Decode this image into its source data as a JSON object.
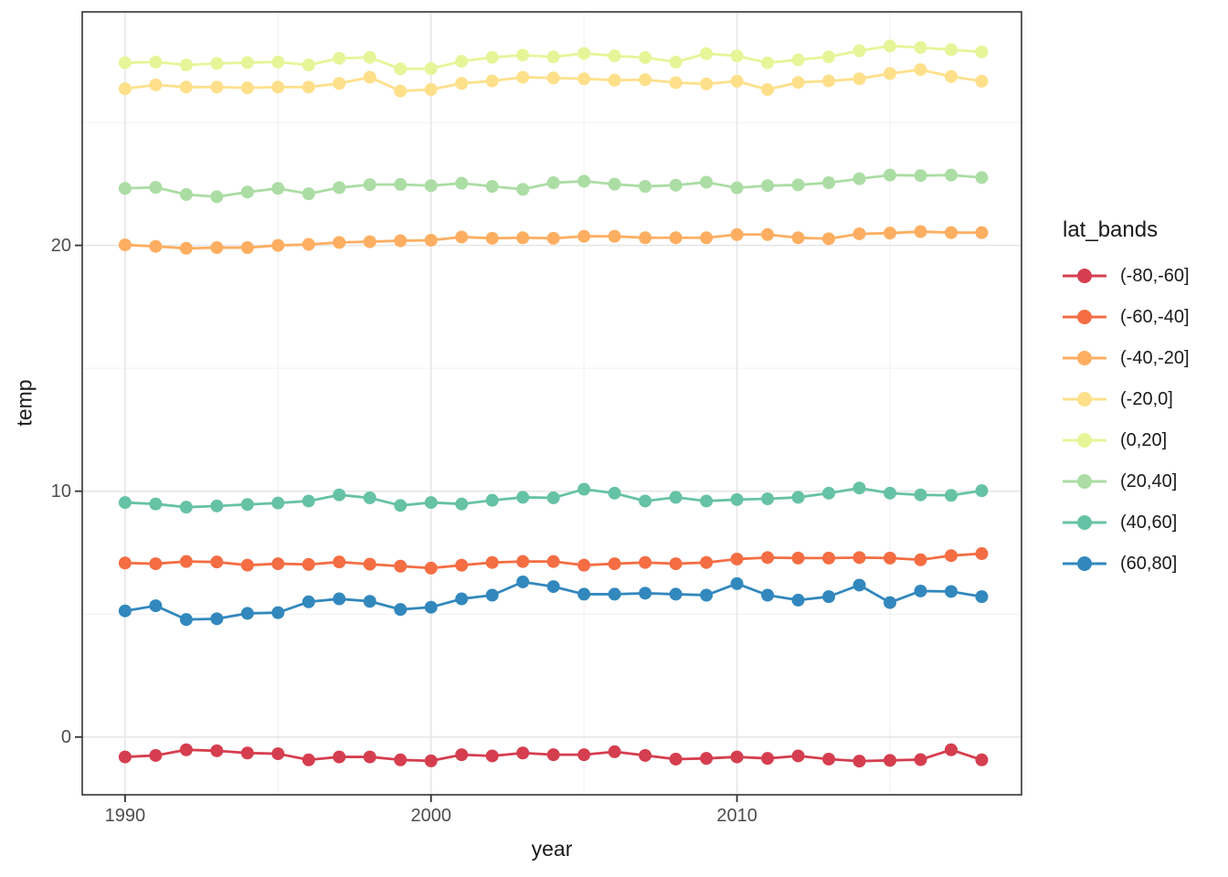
{
  "chart_data": {
    "type": "line",
    "title": "",
    "xlabel": "year",
    "ylabel": "temp",
    "legend_title": "lat_bands",
    "legend_position": "right",
    "grid": true,
    "xlim": [
      1988.6,
      2019.3
    ],
    "ylim": [
      -2.35,
      29.5
    ],
    "xticks": [
      1990,
      2000,
      2010
    ],
    "xticks_minor": [
      1995,
      2005,
      2015
    ],
    "yticks": [
      0,
      10,
      20
    ],
    "yticks_minor": [
      5,
      15,
      25
    ],
    "x": [
      1990,
      1991,
      1992,
      1993,
      1994,
      1995,
      1996,
      1997,
      1998,
      1999,
      2000,
      2001,
      2002,
      2003,
      2004,
      2005,
      2006,
      2007,
      2008,
      2009,
      2010,
      2011,
      2012,
      2013,
      2014,
      2015,
      2016,
      2017,
      2018
    ],
    "series": [
      {
        "name": "(-80,-60]",
        "color": "#d53e4f",
        "values": [
          -0.81,
          -0.75,
          -0.52,
          -0.56,
          -0.65,
          -0.68,
          -0.93,
          -0.81,
          -0.81,
          -0.93,
          -0.97,
          -0.72,
          -0.77,
          -0.65,
          -0.72,
          -0.72,
          -0.6,
          -0.75,
          -0.9,
          -0.87,
          -0.81,
          -0.87,
          -0.77,
          -0.9,
          -0.98,
          -0.95,
          -0.92,
          -0.52,
          -0.93
        ]
      },
      {
        "name": "(-60,-40]",
        "color": "#f46d43",
        "values": [
          7.08,
          7.05,
          7.14,
          7.12,
          6.99,
          7.05,
          7.02,
          7.12,
          7.03,
          6.95,
          6.87,
          6.99,
          7.1,
          7.14,
          7.14,
          6.99,
          7.05,
          7.1,
          7.05,
          7.1,
          7.24,
          7.3,
          7.28,
          7.28,
          7.3,
          7.28,
          7.21,
          7.38,
          7.46
        ]
      },
      {
        "name": "(-40,-20]",
        "color": "#fdae61",
        "values": [
          20.02,
          19.96,
          19.88,
          19.91,
          19.91,
          20.0,
          20.04,
          20.12,
          20.15,
          20.19,
          20.21,
          20.34,
          20.29,
          20.31,
          20.29,
          20.37,
          20.37,
          20.31,
          20.31,
          20.31,
          20.44,
          20.44,
          20.31,
          20.27,
          20.47,
          20.5,
          20.56,
          20.52,
          20.52
        ]
      },
      {
        "name": "(-20,0]",
        "color": "#fee08b",
        "values": [
          26.37,
          26.53,
          26.44,
          26.44,
          26.41,
          26.44,
          26.44,
          26.59,
          26.84,
          26.28,
          26.34,
          26.59,
          26.69,
          26.84,
          26.81,
          26.78,
          26.72,
          26.74,
          26.62,
          26.57,
          26.68,
          26.34,
          26.63,
          26.69,
          26.78,
          26.99,
          27.15,
          26.87,
          26.68
        ]
      },
      {
        "name": "(0,20]",
        "color": "#e6f598",
        "values": [
          27.43,
          27.46,
          27.34,
          27.4,
          27.44,
          27.46,
          27.34,
          27.61,
          27.65,
          27.18,
          27.19,
          27.49,
          27.65,
          27.74,
          27.67,
          27.81,
          27.71,
          27.64,
          27.46,
          27.8,
          27.71,
          27.43,
          27.55,
          27.67,
          27.92,
          28.11,
          28.05,
          27.96,
          27.87
        ]
      },
      {
        "name": "(20,40]",
        "color": "#abdda4",
        "values": [
          22.32,
          22.36,
          22.07,
          21.98,
          22.17,
          22.32,
          22.1,
          22.35,
          22.47,
          22.48,
          22.43,
          22.53,
          22.4,
          22.28,
          22.55,
          22.61,
          22.49,
          22.4,
          22.45,
          22.57,
          22.34,
          22.43,
          22.46,
          22.55,
          22.71,
          22.86,
          22.84,
          22.86,
          22.76
        ]
      },
      {
        "name": "(40,60]",
        "color": "#66c2a5",
        "values": [
          9.54,
          9.48,
          9.35,
          9.4,
          9.46,
          9.52,
          9.6,
          9.85,
          9.73,
          9.42,
          9.54,
          9.48,
          9.63,
          9.75,
          9.73,
          10.08,
          9.92,
          9.6,
          9.75,
          9.6,
          9.66,
          9.69,
          9.75,
          9.92,
          10.13,
          9.92,
          9.85,
          9.83,
          10.02
        ]
      },
      {
        "name": "(60,80]",
        "color": "#3288bd",
        "values": [
          5.13,
          5.34,
          4.78,
          4.81,
          5.03,
          5.06,
          5.5,
          5.62,
          5.52,
          5.19,
          5.28,
          5.62,
          5.77,
          6.31,
          6.12,
          5.81,
          5.81,
          5.85,
          5.81,
          5.77,
          6.24,
          5.77,
          5.57,
          5.71,
          6.18,
          5.47,
          5.94,
          5.92,
          5.71
        ]
      }
    ],
    "style": {
      "panel_border_color": "#333333",
      "major_grid_color": "#e6e6e6",
      "minor_grid_color": "#f0f0f0",
      "tick_color": "#333333",
      "tick_label_color": "#4d4d4d",
      "background_color": "#ffffff"
    }
  }
}
